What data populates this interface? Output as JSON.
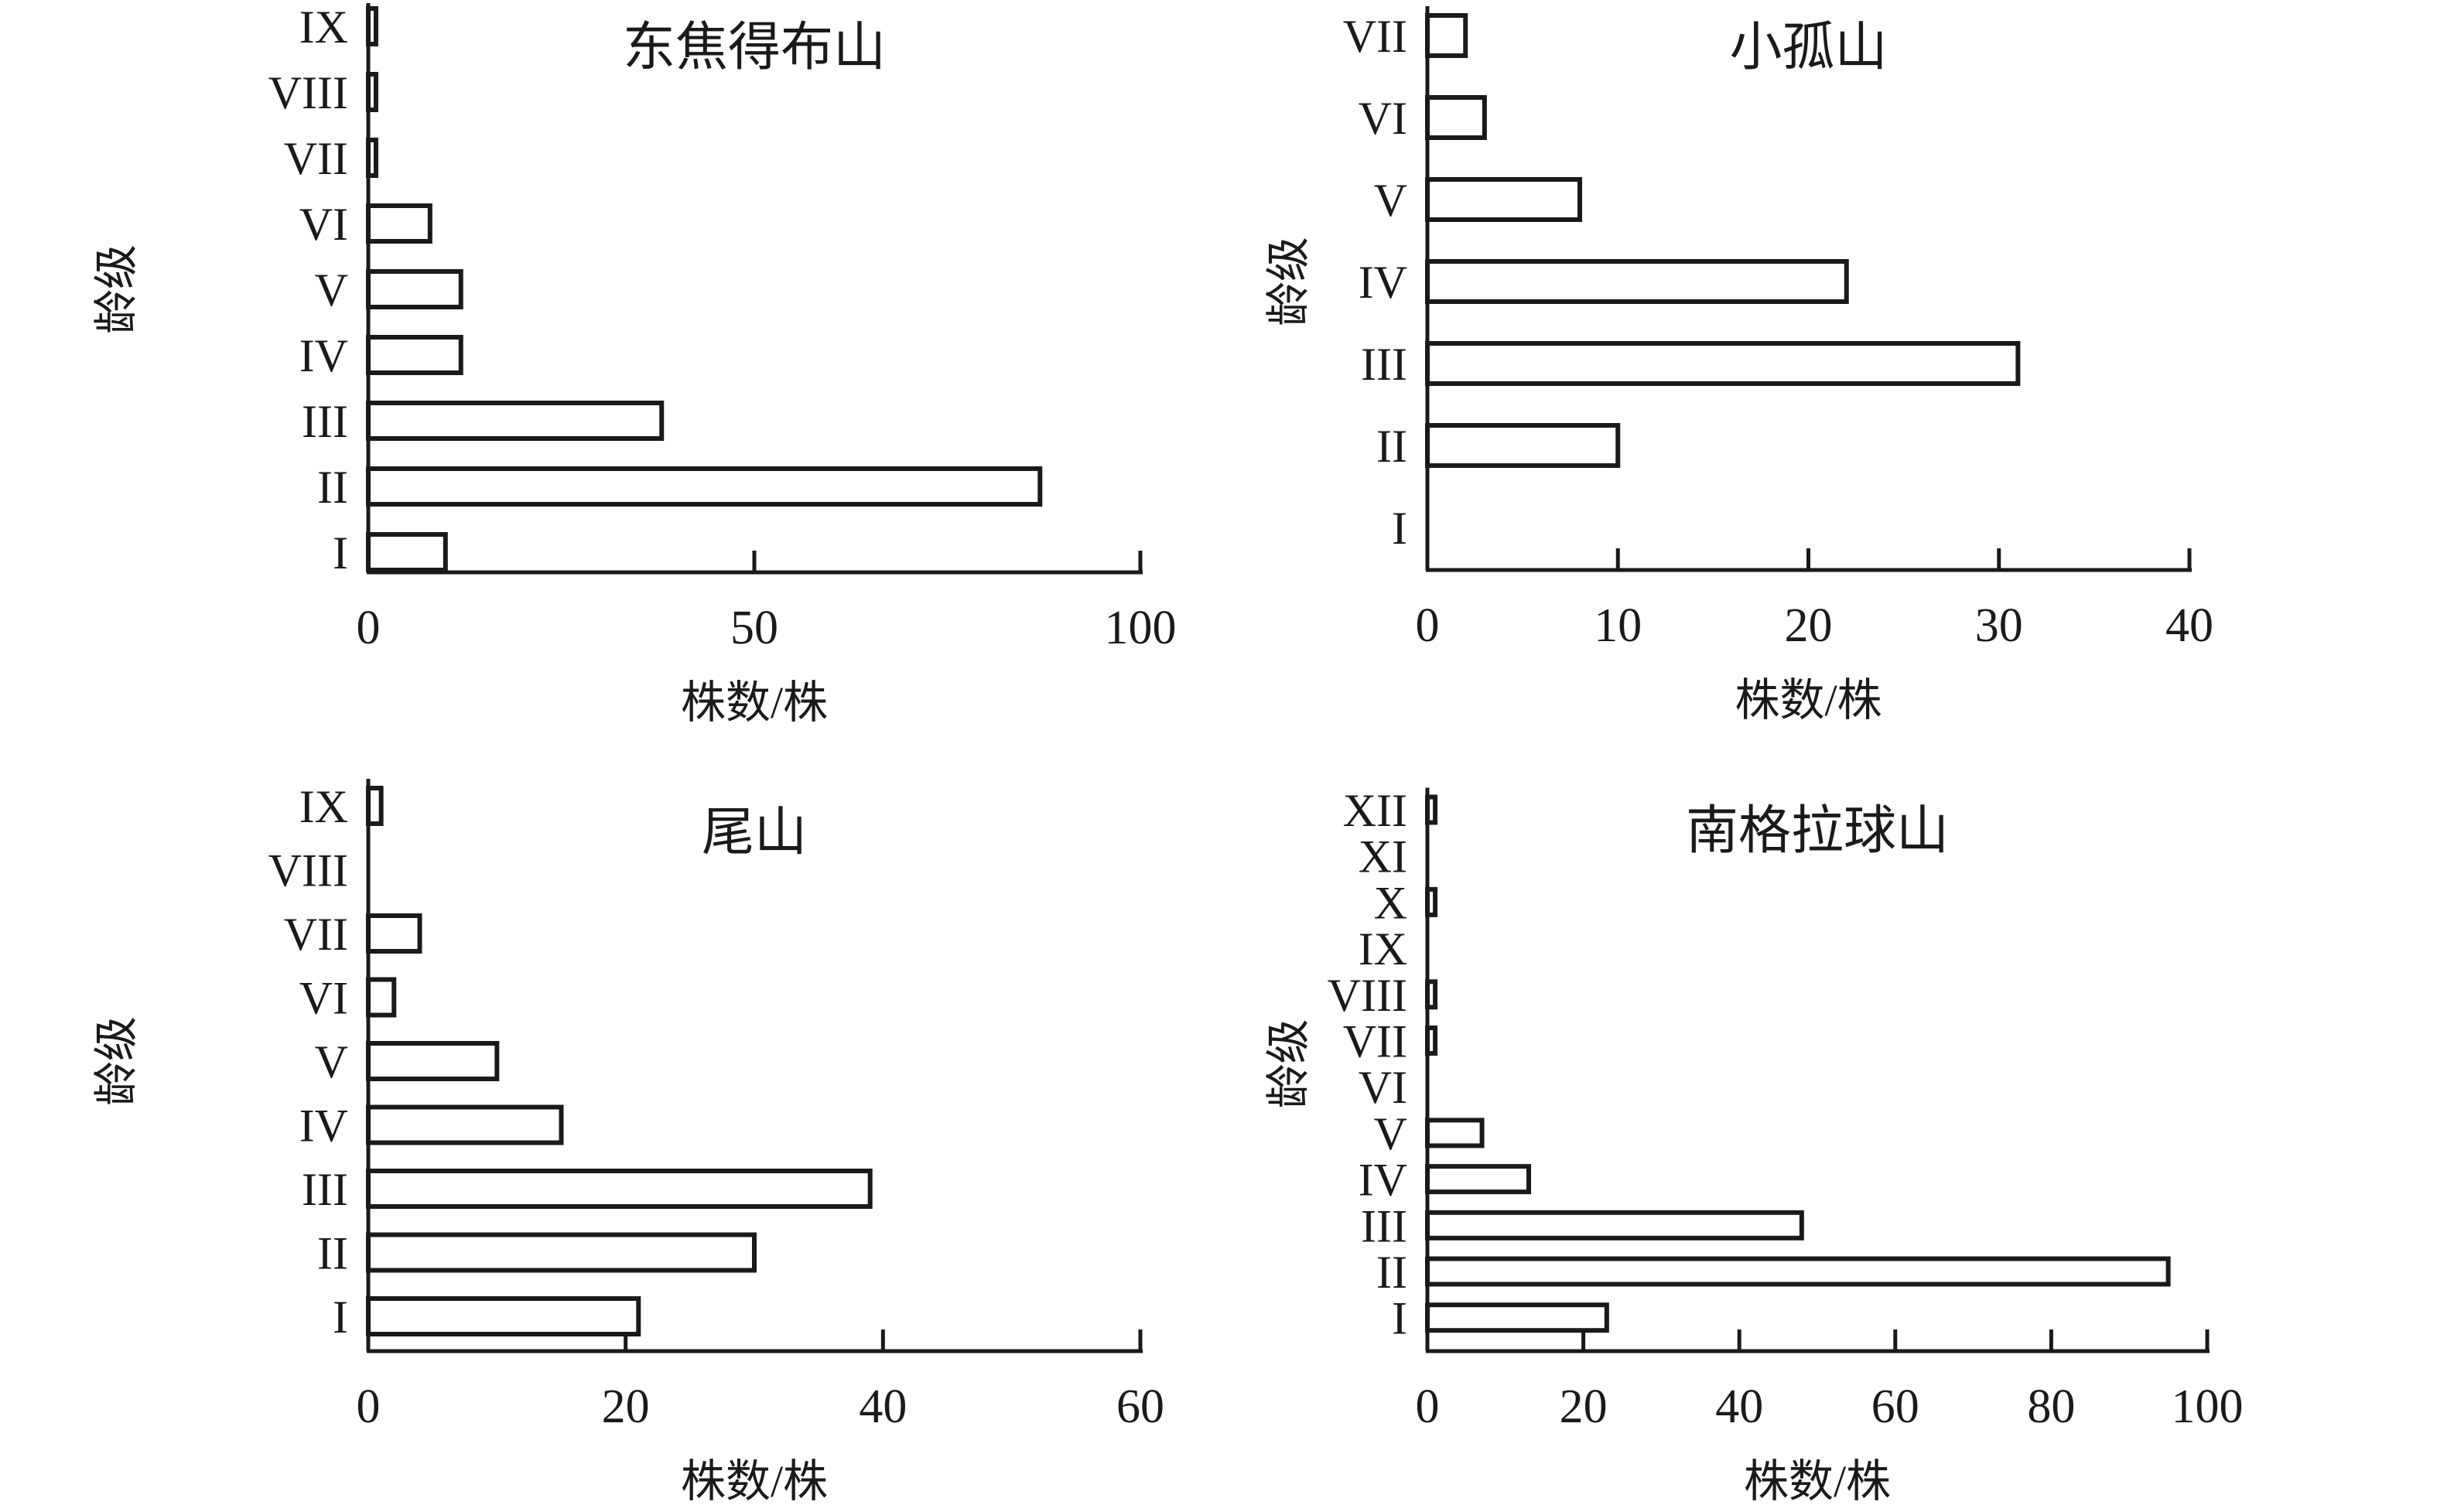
{
  "figure": {
    "background": "#ffffff",
    "ink_color": "#1a1a1a"
  },
  "chart_data": [
    {
      "id": "dongjiaodebu-shan",
      "type": "bar",
      "orientation": "horizontal",
      "title": "东焦得布山",
      "xlabel": "株数/株",
      "ylabel": "龄级",
      "categories_top_to_bottom": [
        "IX",
        "VIII",
        "VII",
        "VI",
        "V",
        "IV",
        "III",
        "II",
        "I"
      ],
      "values": [
        1,
        1,
        1,
        8,
        12,
        12,
        38,
        87,
        10
      ],
      "xlim": [
        0,
        100
      ],
      "xticks": [
        0,
        50,
        100
      ],
      "grid": false,
      "legend": false,
      "bar_fill": "#ffffff",
      "bar_stroke": "#1a1a1a"
    },
    {
      "id": "xiaogu-shan",
      "type": "bar",
      "orientation": "horizontal",
      "title": "小孤山",
      "xlabel": "株数/株",
      "ylabel": "龄级",
      "categories_top_to_bottom": [
        "VII",
        "VI",
        "V",
        "IV",
        "III",
        "II",
        "I"
      ],
      "values": [
        2,
        3,
        8,
        22,
        31,
        10,
        0
      ],
      "xlim": [
        0,
        40
      ],
      "xticks": [
        0,
        10,
        20,
        30,
        40
      ],
      "grid": false,
      "legend": false,
      "bar_fill": "#ffffff",
      "bar_stroke": "#1a1a1a"
    },
    {
      "id": "wei-shan",
      "type": "bar",
      "orientation": "horizontal",
      "title": "尾山",
      "xlabel": "株数/株",
      "ylabel": "龄级",
      "categories_top_to_bottom": [
        "IX",
        "VIII",
        "VII",
        "VI",
        "V",
        "IV",
        "III",
        "II",
        "I"
      ],
      "values": [
        1,
        0,
        4,
        2,
        10,
        15,
        39,
        30,
        21
      ],
      "xlim": [
        0,
        60
      ],
      "xticks": [
        0,
        20,
        40,
        60
      ],
      "grid": false,
      "legend": false,
      "bar_fill": "#ffffff",
      "bar_stroke": "#1a1a1a"
    },
    {
      "id": "nangelaqiu-shan",
      "type": "bar",
      "orientation": "horizontal",
      "title": "南格拉球山",
      "xlabel": "株数/株",
      "ylabel": "龄级",
      "categories_top_to_bottom": [
        "XII",
        "XI",
        "X",
        "IX",
        "VIII",
        "VII",
        "VI",
        "V",
        "IV",
        "III",
        "II",
        "I"
      ],
      "values": [
        1,
        0,
        1,
        0,
        1,
        1,
        0,
        7,
        13,
        48,
        95,
        23
      ],
      "xlim": [
        0,
        100
      ],
      "xticks": [
        0,
        20,
        40,
        60,
        80,
        100
      ],
      "grid": false,
      "legend": false,
      "bar_fill": "#ffffff",
      "bar_stroke": "#1a1a1a"
    }
  ]
}
